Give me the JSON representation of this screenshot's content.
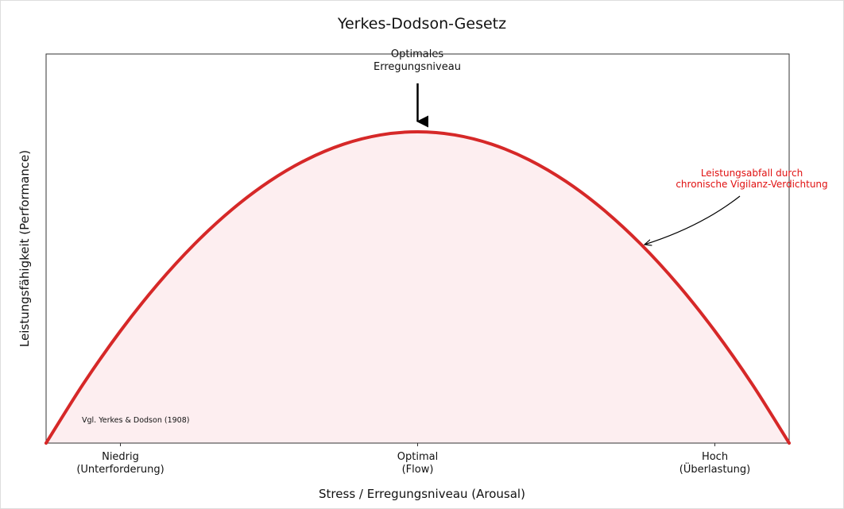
{
  "chart_data": {
    "type": "line",
    "title": "Yerkes-Dodson-Gesetz",
    "xlabel": "Stress / Erregungsniveau (Arousal)",
    "ylabel": "Leistungsfähigkeit (Performance)",
    "x": [
      0,
      0.05,
      0.1,
      0.15,
      0.2,
      0.25,
      0.3,
      0.35,
      0.4,
      0.45,
      0.5,
      0.55,
      0.6,
      0.65,
      0.7,
      0.75,
      0.8,
      0.85,
      0.9,
      0.95,
      1
    ],
    "values": [
      0,
      0.152,
      0.288,
      0.408,
      0.512,
      0.6,
      0.672,
      0.728,
      0.768,
      0.792,
      0.8,
      0.792,
      0.768,
      0.728,
      0.672,
      0.6,
      0.512,
      0.408,
      0.288,
      0.152,
      0
    ],
    "color": "#d62828",
    "fill_color": "#fdeef0",
    "xlim": [
      0,
      1
    ],
    "ylim": [
      0,
      1
    ],
    "xticks": [
      {
        "value": 0.1,
        "label": "Niedrig\n(Unterforderung)"
      },
      {
        "value": 0.5,
        "label": "Optimal\n(Flow)"
      },
      {
        "value": 0.9,
        "label": "Hoch\n(Überlastung)"
      }
    ],
    "annotations": [
      "Optimales\nErregungsniveau",
      "Leistungsabfall durch\nchronische Vigilanz-Verdichtung"
    ],
    "note": "Vgl. Yerkes & Dodson (1908)"
  }
}
